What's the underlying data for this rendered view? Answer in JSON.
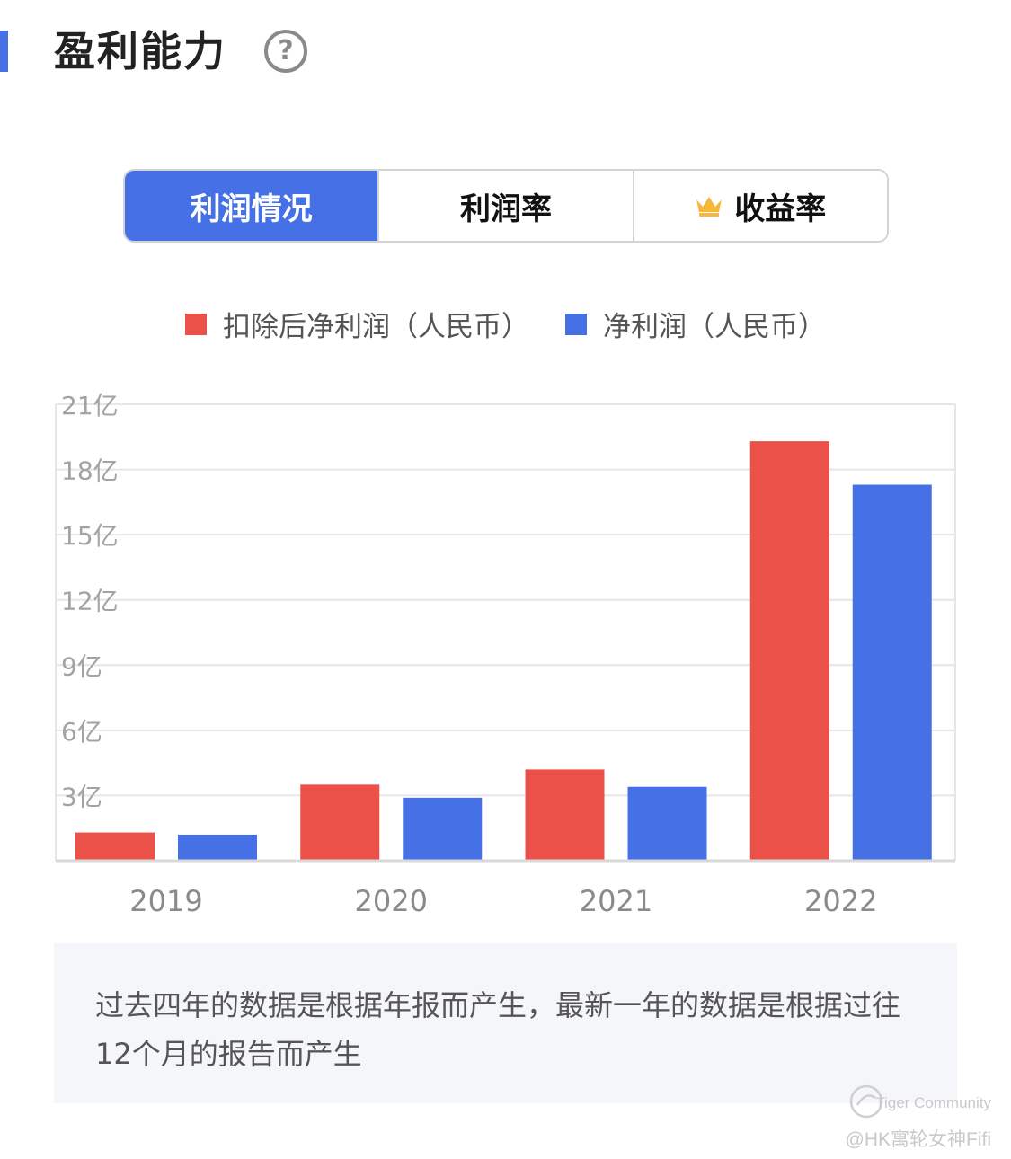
{
  "header": {
    "title": "盈利能力",
    "help_glyph": "?"
  },
  "tabs": [
    {
      "label": "利润情况",
      "active": true
    },
    {
      "label": "利润率",
      "active": false
    },
    {
      "label": "收益率",
      "active": false,
      "icon": "crown-icon"
    }
  ],
  "colors": {
    "accent": "#4570e6",
    "red": "#eb5149",
    "blue": "#4570e6",
    "crown": "#f5b83b"
  },
  "chart_data": {
    "type": "bar",
    "categories": [
      "2019",
      "2020",
      "2021",
      "2022"
    ],
    "series": [
      {
        "name": "扣除后净利润（人民币）",
        "values": [
          1.3,
          3.5,
          4.2,
          19.3
        ]
      },
      {
        "name": "净利润（人民币）",
        "values": [
          1.2,
          2.9,
          3.4,
          17.3
        ]
      }
    ],
    "ylim": [
      0,
      21
    ],
    "yticks": [
      3,
      6,
      9,
      12,
      15,
      18,
      21
    ],
    "ytick_labels": [
      "3亿",
      "6亿",
      "9亿",
      "12亿",
      "15亿",
      "18亿",
      "21亿"
    ],
    "grid": true,
    "legend": "top-center"
  },
  "note": "过去四年的数据是根据年报而产生，最新一年的数据是根据过往12个月的报告而产生",
  "watermark": {
    "brand": "Tiger Community",
    "author": "@HK寓轮女神Fifi"
  }
}
